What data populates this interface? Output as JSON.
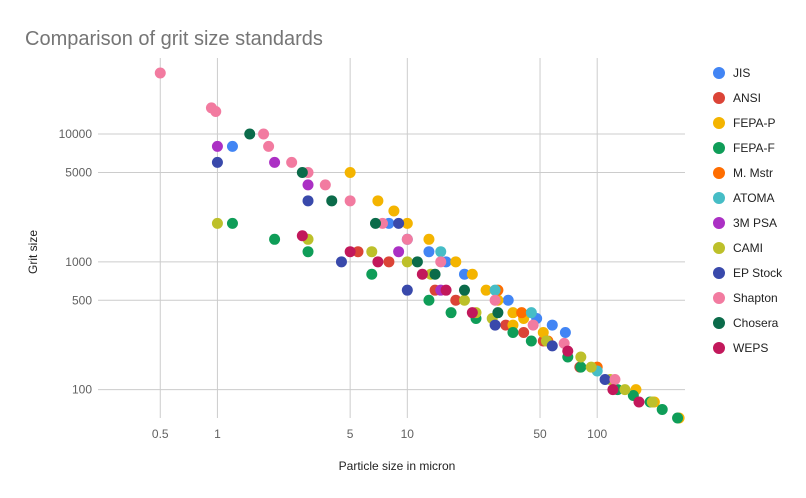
{
  "chart_data": {
    "type": "scatter",
    "title": "Comparison of grit size standards",
    "xlabel": "Particle size in micron",
    "ylabel": "Grit size",
    "xscale": "log",
    "yscale": "log",
    "xlim": [
      0.235,
      290
    ],
    "ylim": [
      60,
      30000
    ],
    "xticks": [
      0.5,
      1,
      5,
      10,
      50,
      100
    ],
    "yticks": [
      100,
      500,
      1000,
      5000,
      10000
    ],
    "grid": true,
    "legend_position": "right",
    "series": [
      {
        "name": "JIS",
        "color": "#4285f4",
        "points": [
          [
            1.2,
            8000
          ],
          [
            8,
            2000
          ],
          [
            10,
            1500
          ],
          [
            13,
            1200
          ],
          [
            16,
            1000
          ],
          [
            20,
            800
          ],
          [
            34,
            500
          ],
          [
            48,
            360
          ],
          [
            58,
            320
          ],
          [
            68,
            280
          ]
        ]
      },
      {
        "name": "ANSI",
        "color": "#db4437",
        "points": [
          [
            5.5,
            1200
          ],
          [
            8,
            1000
          ],
          [
            14,
            600
          ],
          [
            18,
            500
          ],
          [
            33,
            320
          ],
          [
            41,
            280
          ],
          [
            52,
            240
          ],
          [
            81,
            150
          ]
        ]
      },
      {
        "name": "FEPA-P",
        "color": "#f4b400",
        "points": [
          [
            5,
            5000
          ],
          [
            7,
            3000
          ],
          [
            8.5,
            2500
          ],
          [
            10,
            2000
          ],
          [
            13,
            1500
          ],
          [
            18,
            1000
          ],
          [
            22,
            800
          ],
          [
            26,
            600
          ],
          [
            30,
            500
          ],
          [
            36,
            400
          ],
          [
            41,
            360
          ],
          [
            36,
            320
          ],
          [
            52,
            280
          ],
          [
            160,
            100
          ],
          [
            200,
            80
          ],
          [
            270,
            60
          ]
        ]
      },
      {
        "name": "FEPA-F",
        "color": "#0f9d58",
        "points": [
          [
            1.2,
            2000
          ],
          [
            2,
            1500
          ],
          [
            3,
            1200
          ],
          [
            6.5,
            800
          ],
          [
            13,
            500
          ],
          [
            17,
            400
          ],
          [
            23,
            360
          ],
          [
            36,
            280
          ],
          [
            45,
            240
          ],
          [
            70,
            180
          ],
          [
            82,
            150
          ],
          [
            128,
            100
          ],
          [
            155,
            90
          ],
          [
            190,
            80
          ],
          [
            220,
            70
          ],
          [
            265,
            60
          ]
        ]
      },
      {
        "name": "M. Mstr",
        "color": "#ff6d00",
        "points": [
          [
            30,
            600
          ],
          [
            40,
            400
          ],
          [
            55,
            240
          ],
          [
            100,
            150
          ]
        ]
      },
      {
        "name": "ATOMA",
        "color": "#46bdc6",
        "points": [
          [
            15,
            1200
          ],
          [
            29,
            600
          ],
          [
            45,
            400
          ],
          [
            100,
            140
          ]
        ]
      },
      {
        "name": "3M PSA",
        "color": "#ab30c4",
        "points": [
          [
            1,
            8000
          ],
          [
            2,
            6000
          ],
          [
            3,
            4000
          ],
          [
            9,
            1200
          ],
          [
            15,
            600
          ]
        ]
      },
      {
        "name": "CAMI",
        "color": "#bdc02a",
        "points": [
          [
            1,
            2000
          ],
          [
            3,
            1500
          ],
          [
            6.5,
            1200
          ],
          [
            10,
            1000
          ],
          [
            13.3,
            800
          ],
          [
            20,
            500
          ],
          [
            23,
            400
          ],
          [
            28,
            360
          ],
          [
            54,
            240
          ],
          [
            82,
            180
          ],
          [
            93,
            150
          ],
          [
            117,
            120
          ],
          [
            140,
            100
          ],
          [
            195,
            80
          ]
        ]
      },
      {
        "name": "EP Stock",
        "color": "#3949ab",
        "points": [
          [
            1,
            6000
          ],
          [
            3,
            3000
          ],
          [
            9,
            2000
          ],
          [
            4.5,
            1000
          ],
          [
            10,
            600
          ],
          [
            29,
            320
          ],
          [
            58,
            220
          ],
          [
            110,
            120
          ]
        ]
      },
      {
        "name": "Shapton",
        "color": "#f27ba0",
        "points": [
          [
            0.5,
            30000
          ],
          [
            0.93,
            16000
          ],
          [
            0.98,
            15000
          ],
          [
            1.75,
            10000
          ],
          [
            1.86,
            8000
          ],
          [
            2.46,
            6000
          ],
          [
            3,
            5000
          ],
          [
            3.7,
            4000
          ],
          [
            5,
            3000
          ],
          [
            7.4,
            2000
          ],
          [
            10,
            1500
          ],
          [
            15,
            1000
          ],
          [
            29,
            500
          ],
          [
            46,
            320
          ],
          [
            67,
            230
          ],
          [
            124,
            120
          ]
        ]
      },
      {
        "name": "Chosera",
        "color": "#0b6b4a",
        "points": [
          [
            1.48,
            10000
          ],
          [
            2.8,
            5000
          ],
          [
            4,
            3000
          ],
          [
            6.8,
            2000
          ],
          [
            11.3,
            1000
          ],
          [
            14,
            800
          ],
          [
            20,
            600
          ],
          [
            30,
            400
          ]
        ]
      },
      {
        "name": "WEPS",
        "color": "#c2185b",
        "points": [
          [
            2.8,
            1600
          ],
          [
            5,
            1200
          ],
          [
            7,
            1000
          ],
          [
            12,
            800
          ],
          [
            16,
            600
          ],
          [
            22,
            400
          ],
          [
            70,
            200
          ],
          [
            121,
            100
          ],
          [
            166,
            80
          ]
        ]
      }
    ]
  }
}
